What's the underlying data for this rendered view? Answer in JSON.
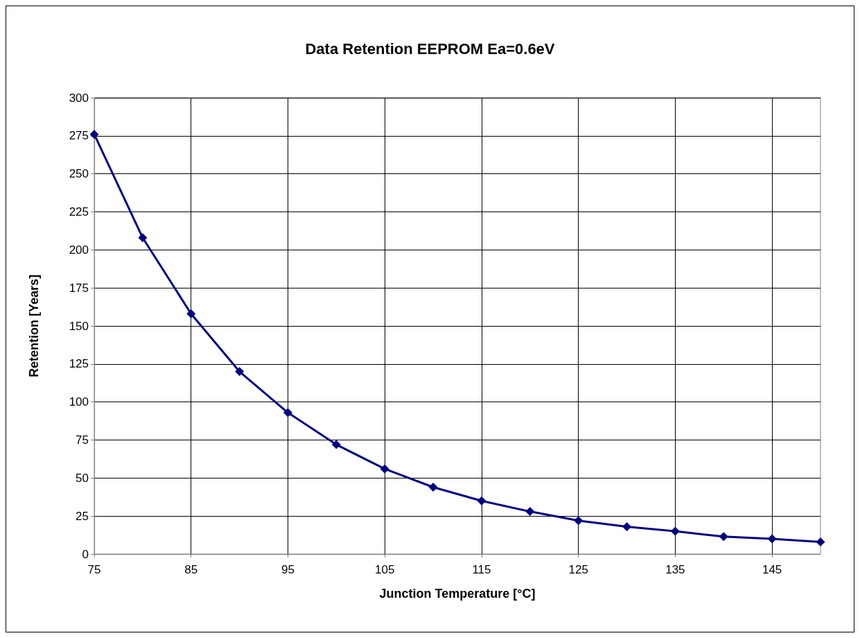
{
  "chart_data": {
    "type": "line",
    "title": "Data Retention EEPROM Ea=0.6eV",
    "xlabel": "Junction Temperature [°C]",
    "ylabel": "Retention [Years]",
    "x": [
      75,
      80,
      85,
      90,
      95,
      100,
      105,
      110,
      115,
      120,
      125,
      130,
      135,
      140,
      145,
      150
    ],
    "series": [
      {
        "color": "#000080",
        "values": [
          276,
          208,
          158,
          120,
          93,
          72,
          56,
          44,
          35,
          28,
          22,
          18,
          15,
          11.5,
          10,
          8
        ]
      }
    ],
    "xlim": [
      75,
      150
    ],
    "xticks": [
      75,
      85,
      95,
      105,
      115,
      125,
      135,
      145
    ],
    "ylim": [
      0,
      300
    ],
    "yticks": [
      0,
      25,
      50,
      75,
      100,
      125,
      150,
      175,
      200,
      225,
      250,
      275,
      300
    ],
    "grid": true,
    "marker": "diamond",
    "line_style": "solid"
  }
}
